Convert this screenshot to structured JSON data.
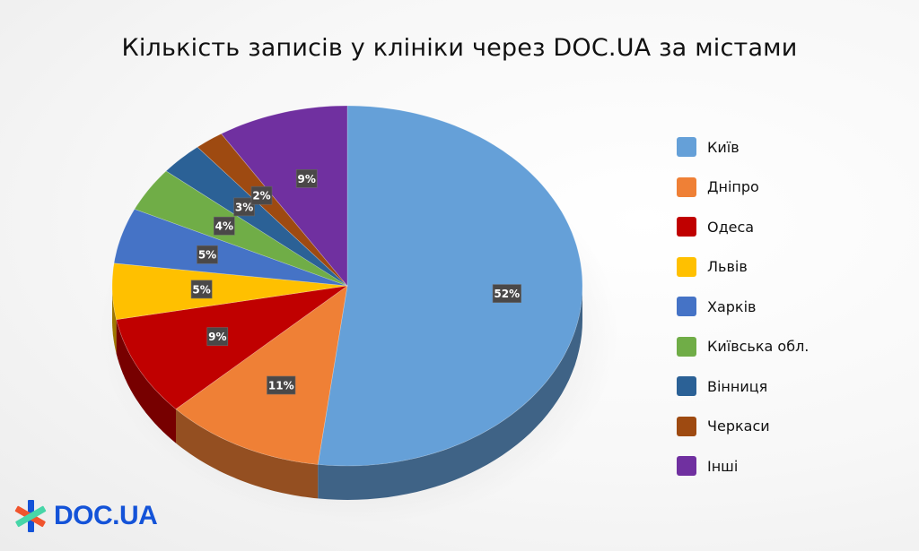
{
  "title": "Кількість записів у клініки через DOC.UA за містами",
  "logo": {
    "text": "DOC.UA",
    "icon": "doc-ua-cross-logo-icon",
    "colors": {
      "blue": "#1453d8",
      "red": "#f0542d",
      "green": "#47d6a8"
    }
  },
  "legend": {
    "items": [
      {
        "label": "Київ",
        "color": "#65a0d8"
      },
      {
        "label": "Дніпро",
        "color": "#ef8036"
      },
      {
        "label": "Одеса",
        "color": "#c00000"
      },
      {
        "label": "Львів",
        "color": "#ffc000"
      },
      {
        "label": "Харків",
        "color": "#4573c6"
      },
      {
        "label": "Київська обл.",
        "color": "#70ad47"
      },
      {
        "label": "Вінниця",
        "color": "#2b6196"
      },
      {
        "label": "Черкаси",
        "color": "#9e4a11"
      },
      {
        "label": "Інші",
        "color": "#7030a0"
      }
    ]
  },
  "chart_data": {
    "type": "pie",
    "style": "3d",
    "title": "Кількість записів у клініки через DOC.UA за містами",
    "categories": [
      "Київ",
      "Дніпро",
      "Одеса",
      "Львів",
      "Харків",
      "Київська обл.",
      "Вінниця",
      "Черкаси",
      "Інші"
    ],
    "values": [
      52,
      11,
      9,
      5,
      5,
      4,
      3,
      2,
      9
    ],
    "labels": [
      "52%",
      "11%",
      "9%",
      "5%",
      "5%",
      "4%",
      "3%",
      "2%",
      "9%"
    ],
    "colors": [
      "#65a0d8",
      "#ef8036",
      "#c00000",
      "#ffc000",
      "#4573c6",
      "#70ad47",
      "#2b6196",
      "#9e4a11",
      "#7030a0"
    ],
    "legend_position": "right",
    "data_label_style": "white bold text on dark grey box"
  }
}
